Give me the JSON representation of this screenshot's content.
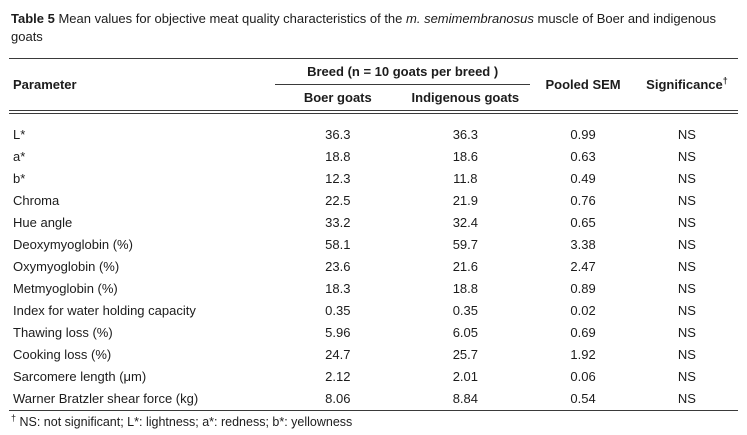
{
  "title": {
    "label": "Table 5",
    "text_before_italic": " Mean values for objective meat quality characteristics of the ",
    "italic": "m. semimembranosus",
    "text_after_italic": " muscle of Boer and indigenous goats"
  },
  "table": {
    "headers": {
      "parameter": "Parameter",
      "breed_group": "Breed (n = 10 goats per breed )",
      "boer": "Boer goats",
      "indigenous": "Indigenous goats",
      "pooled_sem": "Pooled SEM",
      "significance": "Significance",
      "significance_sup": "†"
    },
    "rows": [
      {
        "parameter": "L*",
        "boer": "36.3",
        "indigenous": "36.3",
        "sem": "0.99",
        "sig": "NS"
      },
      {
        "parameter": "a*",
        "boer": "18.8",
        "indigenous": "18.6",
        "sem": "0.63",
        "sig": "NS"
      },
      {
        "parameter": "b*",
        "boer": "12.3",
        "indigenous": "11.8",
        "sem": "0.49",
        "sig": "NS"
      },
      {
        "parameter": "Chroma",
        "boer": "22.5",
        "indigenous": "21.9",
        "sem": "0.76",
        "sig": "NS"
      },
      {
        "parameter": "Hue angle",
        "boer": "33.2",
        "indigenous": "32.4",
        "sem": "0.65",
        "sig": "NS"
      },
      {
        "parameter": "Deoxymyoglobin (%)",
        "boer": "58.1",
        "indigenous": "59.7",
        "sem": "3.38",
        "sig": "NS"
      },
      {
        "parameter": "Oxymyoglobin (%)",
        "boer": "23.6",
        "indigenous": "21.6",
        "sem": "2.47",
        "sig": "NS"
      },
      {
        "parameter": "Metmyoglobin (%)",
        "boer": "18.3",
        "indigenous": "18.8",
        "sem": "0.89",
        "sig": "NS"
      },
      {
        "parameter": "Index for water holding capacity",
        "boer": "0.35",
        "indigenous": "0.35",
        "sem": "0.02",
        "sig": "NS"
      },
      {
        "parameter": "Thawing loss (%)",
        "boer": "5.96",
        "indigenous": "6.05",
        "sem": "0.69",
        "sig": "NS"
      },
      {
        "parameter": "Cooking loss (%)",
        "boer": "24.7",
        "indigenous": "25.7",
        "sem": "1.92",
        "sig": "NS"
      },
      {
        "parameter": "Sarcomere length (μm)",
        "boer": "2.12",
        "indigenous": "2.01",
        "sem": "0.06",
        "sig": "NS"
      },
      {
        "parameter": "Warner Bratzler shear force (kg)",
        "boer": "8.06",
        "indigenous": "8.84",
        "sem": "0.54",
        "sig": "NS"
      }
    ]
  },
  "footnote": {
    "dagger": "†",
    "text": " NS: not significant; L*: lightness; a*: redness; b*: yellowness"
  }
}
